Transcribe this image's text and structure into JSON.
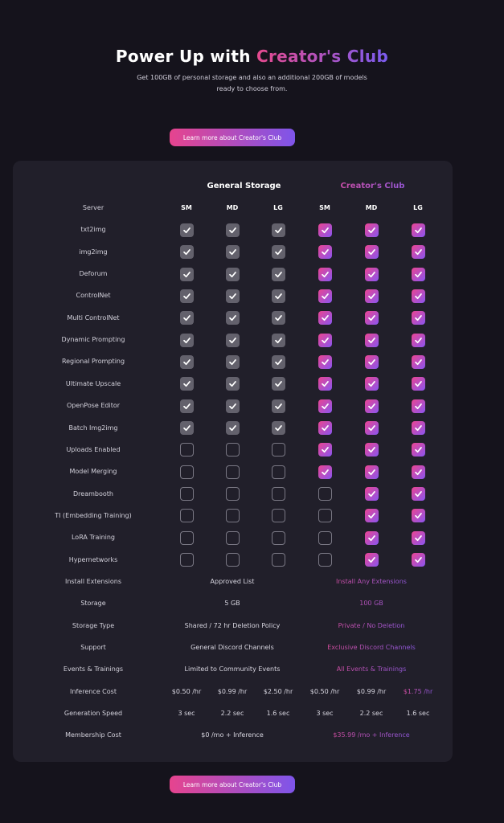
{
  "header": {
    "title_prefix": "Power Up with ",
    "title_highlight": "Creator's Club",
    "subtitle": "Get 100GB of personal storage and also an additional 200GB of models ready to choose from."
  },
  "cta_label": "Learn more about Creator's Club",
  "groups": {
    "general": "General Storage",
    "club": "Creator's Club"
  },
  "server_label": "Server",
  "columns": [
    "SM",
    "MD",
    "LG",
    "SM",
    "MD",
    "LG"
  ],
  "feature_rows": [
    {
      "label": "txt2img",
      "checks": [
        true,
        true,
        true,
        true,
        true,
        true
      ]
    },
    {
      "label": "img2img",
      "checks": [
        true,
        true,
        true,
        true,
        true,
        true
      ]
    },
    {
      "label": "Deforum",
      "checks": [
        true,
        true,
        true,
        true,
        true,
        true
      ]
    },
    {
      "label": "ControlNet",
      "checks": [
        true,
        true,
        true,
        true,
        true,
        true
      ]
    },
    {
      "label": "Multi ControlNet",
      "checks": [
        true,
        true,
        true,
        true,
        true,
        true
      ]
    },
    {
      "label": "Dynamic Prompting",
      "checks": [
        true,
        true,
        true,
        true,
        true,
        true
      ]
    },
    {
      "label": "Regional Prompting",
      "checks": [
        true,
        true,
        true,
        true,
        true,
        true
      ]
    },
    {
      "label": "Ultimate Upscale",
      "checks": [
        true,
        true,
        true,
        true,
        true,
        true
      ]
    },
    {
      "label": "OpenPose Editor",
      "checks": [
        true,
        true,
        true,
        true,
        true,
        true
      ]
    },
    {
      "label": "Batch Img2img",
      "checks": [
        true,
        true,
        true,
        true,
        true,
        true
      ]
    },
    {
      "label": "Uploads Enabled",
      "checks": [
        false,
        false,
        false,
        true,
        true,
        true
      ]
    },
    {
      "label": "Model Merging",
      "checks": [
        false,
        false,
        false,
        true,
        true,
        true
      ]
    },
    {
      "label": "Dreambooth",
      "checks": [
        false,
        false,
        false,
        false,
        true,
        true
      ]
    },
    {
      "label": "TI (Embedding Training)",
      "checks": [
        false,
        false,
        false,
        false,
        true,
        true
      ]
    },
    {
      "label": "LoRA Training",
      "checks": [
        false,
        false,
        false,
        false,
        true,
        true
      ]
    },
    {
      "label": "Hypernetworks",
      "checks": [
        false,
        false,
        false,
        false,
        true,
        true
      ]
    }
  ],
  "span_rows": [
    {
      "label": "Install Extensions",
      "general": "Approved List",
      "club": "Install Any Extensions"
    },
    {
      "label": "Storage",
      "general": "5 GB",
      "club": "100 GB"
    },
    {
      "label": "Storage Type",
      "general": "Shared / 72 hr Deletion Policy",
      "club": "Private / No Deletion"
    },
    {
      "label": "Support",
      "general": "General Discord Channels",
      "club": "Exclusive Discord Channels"
    },
    {
      "label": "Events & Trainings",
      "general": "Limited to Community Events",
      "club": "All Events & Trainings"
    }
  ],
  "cost_rows": [
    {
      "label": "Inference Cost",
      "values": [
        "$0.50 /hr",
        "$0.99 /hr",
        "$2.50 /hr",
        "$0.50 /hr",
        "$0.99 /hr",
        "$1.75 /hr"
      ]
    },
    {
      "label": "Generation Speed",
      "values": [
        "3 sec",
        "2.2 sec",
        "1.6 sec",
        "3 sec",
        "2.2 sec",
        "1.6 sec"
      ]
    }
  ],
  "membership": {
    "label": "Membership Cost",
    "general": "$0 /mo + Inference",
    "club": "$35.99 /mo + Inference"
  }
}
